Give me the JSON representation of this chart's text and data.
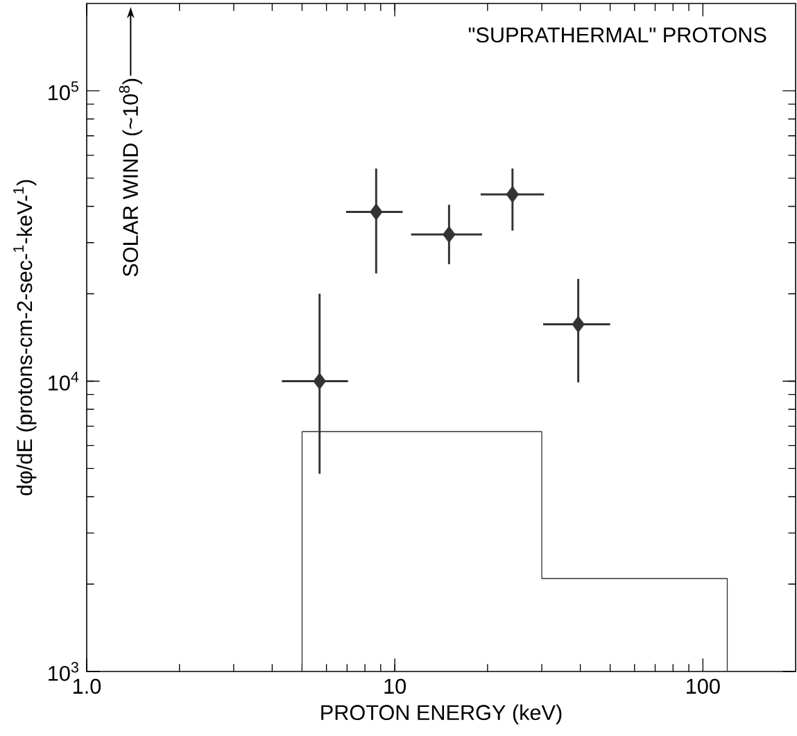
{
  "chart_data": {
    "type": "scatter",
    "title": "\"SUPRATHERMAL\" PROTONS",
    "xlabel": "PROTON ENERGY (keV)",
    "ylabel": "dφ/dE (protons-cm-2-sec-$^{1}$-keV-$^{1}$)",
    "annotations": [
      "SOLAR WIND (~10$^{8}$)"
    ],
    "log": "xy",
    "xlim": [
      1,
      200
    ],
    "ylim": [
      1000,
      200000
    ],
    "xticks": [
      {
        "value": 1,
        "label": "1.0"
      },
      {
        "value": 10,
        "label": "10"
      },
      {
        "value": 100,
        "label": "100"
      }
    ],
    "yticks": [
      {
        "value": 1000,
        "label": "10$^{3}$"
      },
      {
        "value": 10000,
        "label": "10$^{4}$"
      },
      {
        "value": 100000,
        "label": "10$^{5}$"
      }
    ],
    "series": [
      {
        "color": "#333333",
        "marker": "diamond",
        "x": [
          5.7,
          8.7,
          15.0,
          24.1,
          39.4
        ],
        "values": [
          10000,
          38300,
          32000,
          44000,
          15700
        ],
        "errors": [
          [
            4800,
            20000
          ],
          [
            23500,
            54000
          ],
          [
            25300,
            40500
          ],
          [
            33000,
            54000
          ],
          [
            9900,
            22500
          ]
        ],
        "xerrors": [
          [
            4.3,
            7.05
          ],
          [
            6.95,
            10.6
          ],
          [
            11.3,
            19.2
          ],
          [
            19.0,
            30.5
          ],
          [
            30.3,
            50
          ]
        ]
      },
      {
        "type": "histogram",
        "color": "#333333",
        "bins": [
          5,
          30,
          120
        ],
        "values": [
          6700,
          2090
        ]
      }
    ]
  }
}
